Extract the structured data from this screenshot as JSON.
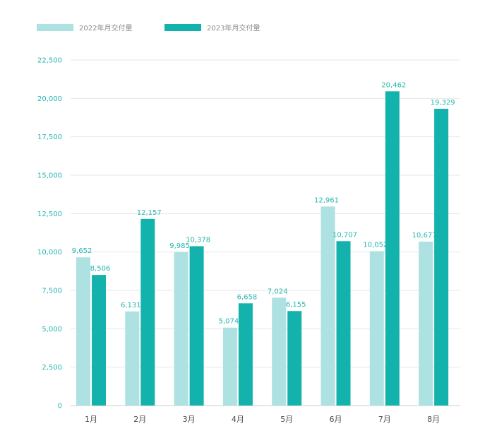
{
  "chart_data": {
    "type": "bar",
    "categories": [
      "1月",
      "2月",
      "3月",
      "4月",
      "5月",
      "6月",
      "7月",
      "8月"
    ],
    "series": [
      {
        "name": "2022年月交付量",
        "color": "#aee1e1",
        "values": [
          9652,
          6131,
          9985,
          5074,
          7024,
          12961,
          10052,
          10677
        ],
        "labels": [
          "9,652",
          "6,131",
          "9,985",
          "5,074",
          "7,024",
          "12,961",
          "10,052",
          "10,677"
        ]
      },
      {
        "name": "2023年月交付量",
        "color": "#13b2ad",
        "values": [
          8506,
          12157,
          10378,
          6658,
          6155,
          10707,
          20462,
          19329
        ],
        "labels": [
          "8,506",
          "12,157",
          "10,378",
          "6,658",
          "6,155",
          "10,707",
          "20,462",
          "19,329"
        ]
      }
    ],
    "yticks": [
      "0",
      "2,500",
      "5,000",
      "7,500",
      "10,000",
      "12,500",
      "15,000",
      "17,500",
      "20,000",
      "22,500"
    ],
    "ylim": [
      0,
      22500
    ],
    "grid": true,
    "legend_position": "top-left",
    "axis_label_color": "#27b6b1",
    "gridline_color": "#e6e6e6"
  }
}
